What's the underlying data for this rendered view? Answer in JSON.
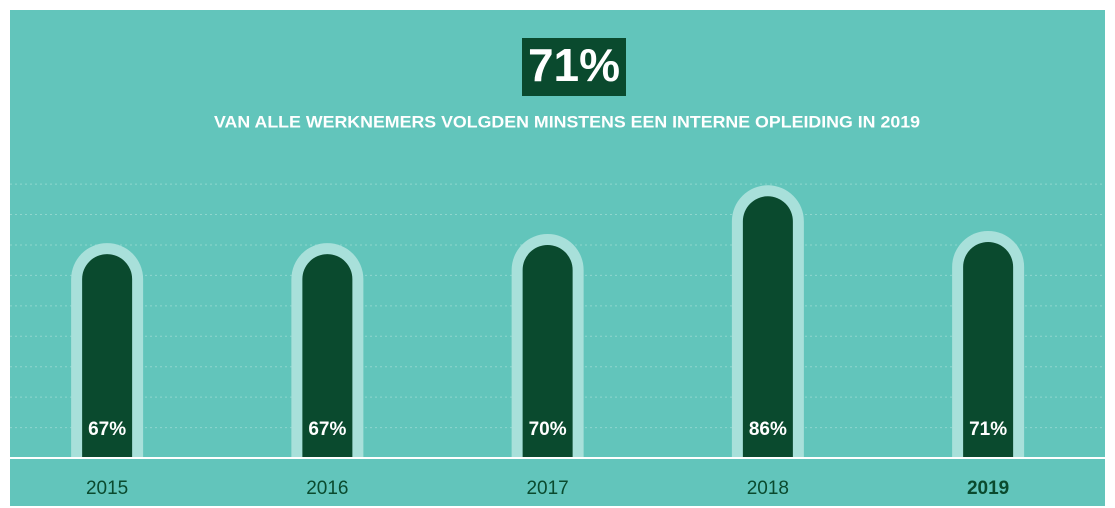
{
  "chart_data": {
    "type": "bar",
    "title": "71%",
    "subtitle": "VAN ALLE WERKNEMERS VOLGDEN MINSTENS EEN INTERNE OPLEIDING IN 2019",
    "categories": [
      "2015",
      "2016",
      "2017",
      "2018",
      "2019"
    ],
    "values": [
      67,
      67,
      70,
      86,
      71
    ],
    "value_labels": [
      "67%",
      "67%",
      "70%",
      "86%",
      "71%"
    ],
    "color": "#0a4a2e",
    "ylim": [
      0,
      93
    ],
    "yticks": [
      10,
      20,
      30,
      40,
      50,
      60,
      70,
      80,
      90
    ],
    "grid": true
  }
}
